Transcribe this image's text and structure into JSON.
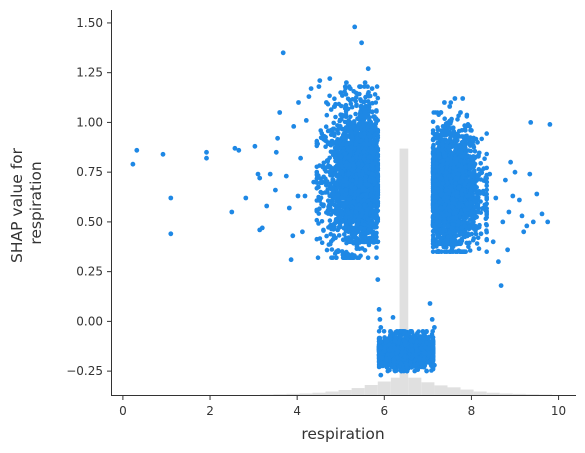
{
  "chart_data": {
    "type": "scatter",
    "title": "",
    "xlabel": "respiration",
    "ylabel_lines": [
      "SHAP value for",
      "respiration"
    ],
    "xlim": [
      -0.25,
      10.4
    ],
    "ylim": [
      -0.37,
      1.565
    ],
    "x_ticks": [
      0,
      2,
      4,
      6,
      8,
      10
    ],
    "x_tick_labels": [
      "0",
      "2",
      "4",
      "6",
      "8",
      "10"
    ],
    "y_ticks": [
      -0.25,
      0.0,
      0.25,
      0.5,
      0.75,
      1.0,
      1.25,
      1.5
    ],
    "y_tick_labels": [
      "−0.25",
      "0.00",
      "0.25",
      "0.50",
      "0.75",
      "1.00",
      "1.25",
      "1.50"
    ],
    "point_color": "#1e88e5",
    "histogram_color": "#e0e0e0",
    "histogram": [
      {
        "x": 3.3,
        "h": 0.0012
      },
      {
        "x": 3.6,
        "h": 0.002
      },
      {
        "x": 3.9,
        "h": 0.003
      },
      {
        "x": 4.2,
        "h": 0.004
      },
      {
        "x": 4.5,
        "h": 0.006
      },
      {
        "x": 4.8,
        "h": 0.009
      },
      {
        "x": 5.1,
        "h": 0.013
      },
      {
        "x": 5.4,
        "h": 0.018
      },
      {
        "x": 5.7,
        "h": 0.026
      },
      {
        "x": 6.0,
        "h": 0.035
      },
      {
        "x": 6.3,
        "h": 0.045
      },
      {
        "x": 6.45,
        "h": 0.64
      },
      {
        "x": 6.7,
        "h": 0.045
      },
      {
        "x": 7.0,
        "h": 0.033
      },
      {
        "x": 7.3,
        "h": 0.025
      },
      {
        "x": 7.6,
        "h": 0.02
      },
      {
        "x": 7.9,
        "h": 0.014
      },
      {
        "x": 8.2,
        "h": 0.009
      },
      {
        "x": 8.5,
        "h": 0.006
      },
      {
        "x": 8.8,
        "h": 0.004
      },
      {
        "x": 9.1,
        "h": 0.003
      },
      {
        "x": 9.4,
        "h": 0.002
      },
      {
        "x": 9.7,
        "h": 0.0012
      }
    ],
    "histogram_bin_width": 0.3,
    "series": [
      {
        "values": [
          [
            0.23,
            0.79
          ],
          [
            0.32,
            0.86
          ],
          [
            0.92,
            0.84
          ],
          [
            1.1,
            0.62
          ],
          [
            1.1,
            0.44
          ],
          [
            1.92,
            0.85
          ],
          [
            1.92,
            0.82
          ],
          [
            2.5,
            0.55
          ],
          [
            2.57,
            0.87
          ],
          [
            2.66,
            0.86
          ],
          [
            2.82,
            0.62
          ],
          [
            3.03,
            0.88
          ],
          [
            3.1,
            0.74
          ],
          [
            3.14,
            0.72
          ],
          [
            3.14,
            0.46
          ],
          [
            3.2,
            0.47
          ],
          [
            3.3,
            0.58
          ],
          [
            3.38,
            0.74
          ],
          [
            3.5,
            0.66
          ],
          [
            3.52,
            0.85
          ],
          [
            3.55,
            0.92
          ],
          [
            3.6,
            1.05
          ],
          [
            3.68,
            1.35
          ],
          [
            3.75,
            0.73
          ],
          [
            3.82,
            0.57
          ],
          [
            3.86,
            0.31
          ],
          [
            3.9,
            0.43
          ],
          [
            3.92,
            0.98
          ],
          [
            4.02,
            0.63
          ],
          [
            4.03,
            1.1
          ],
          [
            4.08,
            0.82
          ],
          [
            4.12,
            0.45
          ],
          [
            4.18,
            0.63
          ],
          [
            4.21,
            1.01
          ],
          [
            4.27,
            1.13
          ],
          [
            4.32,
            1.17
          ],
          [
            4.38,
            0.7
          ],
          [
            4.45,
            0.56
          ],
          [
            4.5,
            1.18
          ],
          [
            4.52,
            1.21
          ],
          [
            4.6,
            0.58
          ],
          [
            4.62,
            0.93
          ],
          [
            4.67,
            1.1
          ],
          [
            4.75,
            1.22
          ],
          [
            4.8,
            0.64
          ],
          [
            4.86,
            1.08
          ],
          [
            5.0,
            1.15
          ],
          [
            5.06,
            0.41
          ],
          [
            5.13,
            1.2
          ],
          [
            5.22,
            1.17
          ],
          [
            5.32,
            1.48
          ],
          [
            5.35,
            0.89
          ],
          [
            5.43,
            1.18
          ],
          [
            5.48,
            1.4
          ],
          [
            5.56,
            1.2
          ],
          [
            5.63,
            1.27
          ],
          [
            5.72,
            1.17
          ],
          [
            5.8,
            0.41
          ],
          [
            5.85,
            0.21
          ],
          [
            5.88,
            0.06
          ],
          [
            5.9,
            0.01
          ],
          [
            5.92,
            -0.03
          ],
          [
            5.92,
            -0.27
          ],
          [
            5.95,
            -0.21
          ],
          [
            6.0,
            -0.15
          ],
          [
            6.05,
            -0.19
          ],
          [
            6.2,
            0.02
          ],
          [
            7.05,
            0.09
          ],
          [
            7.1,
            0.01
          ],
          [
            7.15,
            -0.03
          ],
          [
            7.15,
            -0.22
          ],
          [
            7.2,
            0.92
          ],
          [
            7.3,
            1.05
          ],
          [
            7.38,
            1.1
          ],
          [
            7.5,
            1.08
          ],
          [
            7.55,
            0.47
          ],
          [
            7.62,
            1.12
          ],
          [
            7.65,
            0.52
          ],
          [
            7.75,
            1.05
          ],
          [
            7.8,
            1.12
          ],
          [
            7.85,
            0.48
          ],
          [
            7.92,
            0.99
          ],
          [
            8.0,
            0.96
          ],
          [
            8.07,
            0.82
          ],
          [
            8.14,
            0.9
          ],
          [
            8.22,
            0.44
          ],
          [
            8.35,
            0.7
          ],
          [
            8.42,
            0.74
          ],
          [
            8.5,
            0.4
          ],
          [
            8.56,
            0.62
          ],
          [
            8.62,
            0.3
          ],
          [
            8.68,
            0.18
          ],
          [
            8.72,
            0.5
          ],
          [
            8.78,
            0.71
          ],
          [
            8.86,
            0.55
          ],
          [
            8.95,
            0.63
          ],
          [
            9.0,
            0.75
          ],
          [
            9.1,
            0.61
          ],
          [
            9.2,
            0.45
          ],
          [
            9.27,
            0.48
          ],
          [
            9.34,
            0.74
          ],
          [
            9.42,
            0.5
          ],
          [
            9.5,
            0.64
          ],
          [
            9.62,
            0.54
          ],
          [
            9.75,
            0.5
          ],
          [
            9.8,
            0.99
          ],
          [
            9.36,
            1.0
          ],
          [
            9.16,
            0.53
          ],
          [
            8.9,
            0.8
          ],
          [
            8.83,
            0.36
          ]
        ]
      }
    ],
    "clusters": [
      {
        "x_range": [
          4.45,
          5.82
        ],
        "y_range": [
          0.32,
          1.18
        ],
        "center": [
          5.25,
          0.71
        ],
        "spread": [
          0.34,
          0.17
        ],
        "count": 1400
      },
      {
        "x_range": [
          5.12,
          5.85
        ],
        "y_range": [
          0.4,
          1.18
        ],
        "center": [
          5.55,
          0.72
        ],
        "spread": [
          0.18,
          0.2
        ],
        "count": 900
      },
      {
        "x_range": [
          7.12,
          8.35
        ],
        "y_range": [
          0.35,
          1.1
        ],
        "center": [
          7.65,
          0.65
        ],
        "spread": [
          0.3,
          0.14
        ],
        "count": 1300
      },
      {
        "x_range": [
          7.12,
          7.85
        ],
        "y_range": [
          0.39,
          1.05
        ],
        "center": [
          7.4,
          0.66
        ],
        "spread": [
          0.18,
          0.16
        ],
        "count": 800
      },
      {
        "x_range": [
          5.88,
          7.12
        ],
        "y_range": [
          -0.25,
          -0.05
        ],
        "center": [
          6.5,
          -0.15
        ],
        "spread": [
          0.32,
          0.04
        ],
        "count": 1600
      }
    ]
  }
}
